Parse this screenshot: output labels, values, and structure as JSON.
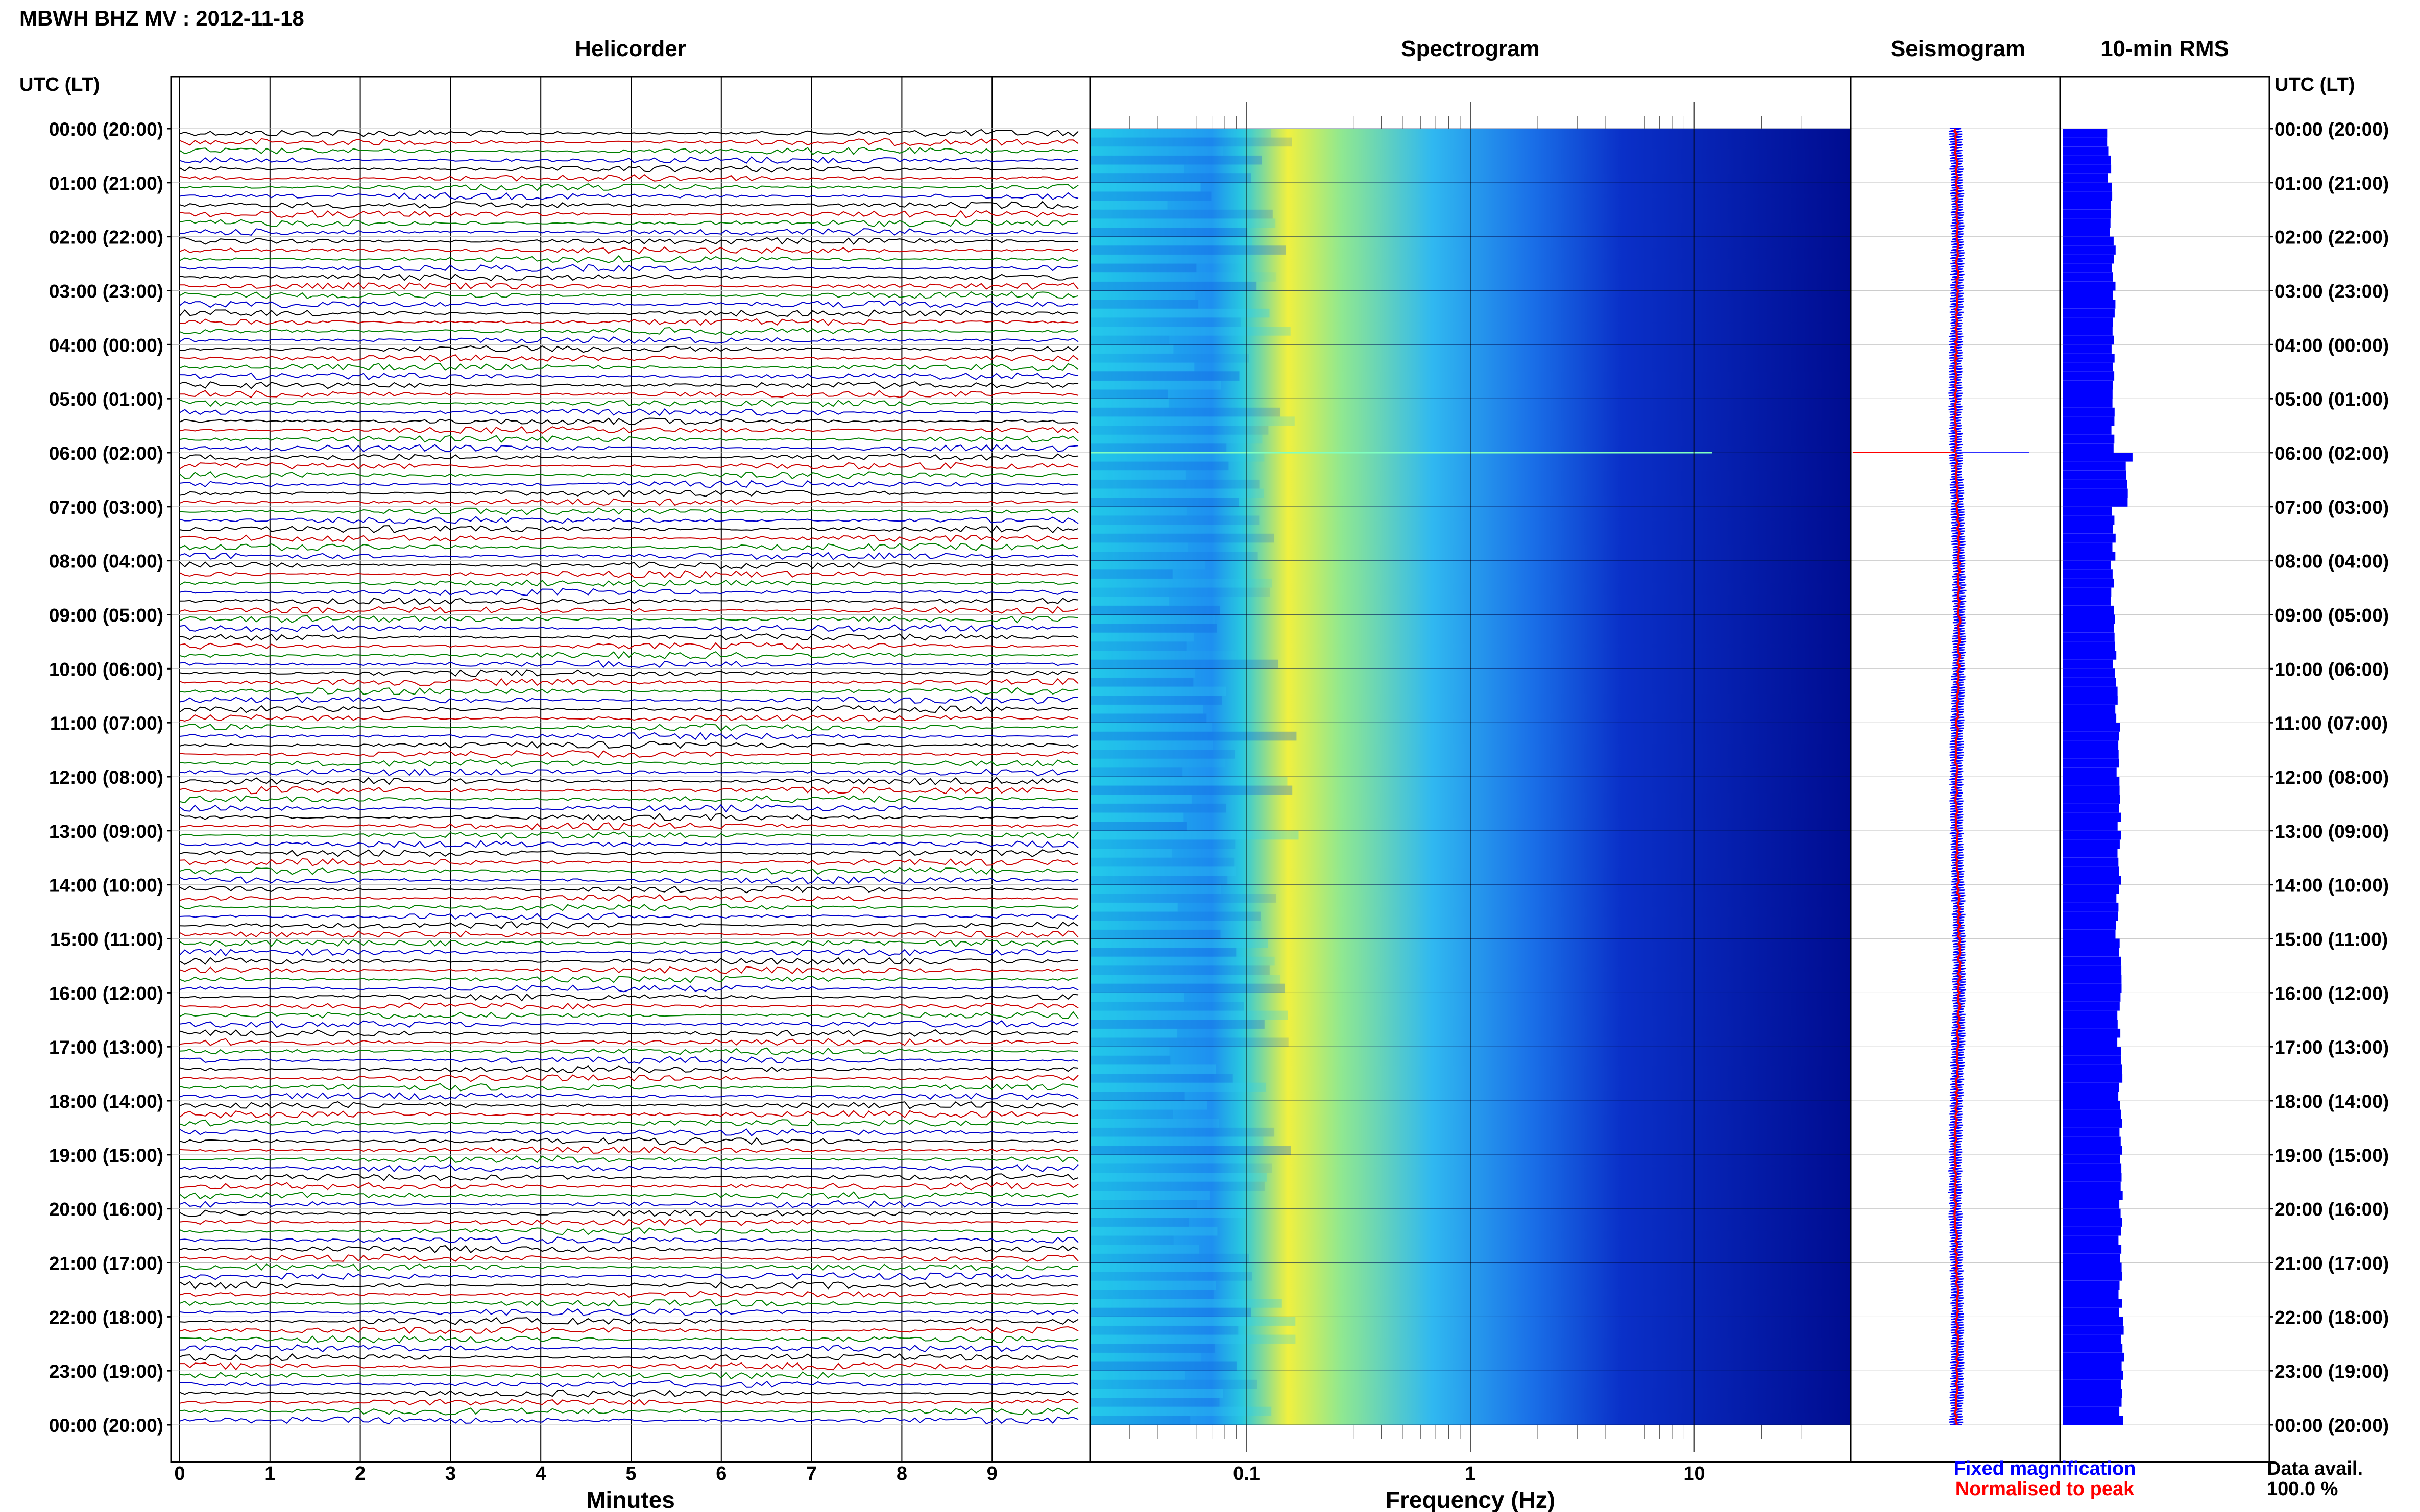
{
  "title": "MBWH BHZ MV : 2012-11-18",
  "panel_titles": {
    "helicorder": "Helicorder",
    "spectrogram": "Spectrogram",
    "seismogram": "Seismogram",
    "rms": "10-min RMS"
  },
  "axis_labels": {
    "left_time": "UTC (LT)",
    "right_time": "UTC (LT)",
    "helicorder_x": "Minutes",
    "spectrogram_x": "Frequency (Hz)"
  },
  "legend": {
    "fixed": "Fixed magnification",
    "normalised": "Normalised to peak",
    "fixed_color": "#0000ff",
    "normalised_color": "#ff0000"
  },
  "data_avail": {
    "label": "Data avail.",
    "value": "100.0 %"
  },
  "colors": {
    "helicorder_traces": [
      "#000000",
      "#cc0000",
      "#008000",
      "#0000cc"
    ],
    "rms_bar": "#0000ff",
    "seismogram_envelope": "#0000ff",
    "seismogram_trace": "#ff0000"
  },
  "chart_data": [
    {
      "type": "line",
      "panel": "helicorder",
      "xlabel": "Minutes",
      "x_ticks": [
        "0",
        "1",
        "2",
        "3",
        "4",
        "5",
        "6",
        "7",
        "8",
        "9"
      ],
      "xlim": [
        0,
        10
      ],
      "rows_per_hour": 6,
      "row_minutes": 10,
      "time_ticks": [
        "00:00 (20:00)",
        "01:00 (21:00)",
        "02:00 (22:00)",
        "03:00 (23:00)",
        "04:00 (00:00)",
        "05:00 (01:00)",
        "06:00 (02:00)",
        "07:00 (03:00)",
        "08:00 (04:00)",
        "09:00 (05:00)",
        "10:00 (06:00)",
        "11:00 (07:00)",
        "12:00 (08:00)",
        "13:00 (09:00)",
        "14:00 (10:00)",
        "15:00 (11:00)",
        "16:00 (12:00)",
        "17:00 (13:00)",
        "18:00 (14:00)",
        "19:00 (15:00)",
        "20:00 (16:00)",
        "21:00 (17:00)",
        "22:00 (18:00)",
        "23:00 (19:00)",
        "00:00 (20:00)"
      ]
    },
    {
      "type": "heatmap",
      "panel": "spectrogram",
      "xlabel": "Frequency (Hz)",
      "x_scale": "log",
      "xlim": [
        0.02,
        50
      ],
      "x_ticks": [
        "0.1",
        "1",
        "10"
      ],
      "peak_frequency_hz": 0.25,
      "notable_event_hour": 6.0
    },
    {
      "type": "line",
      "panel": "seismogram",
      "series": [
        {
          "name": "Fixed magnification"
        },
        {
          "name": "Normalised to peak"
        }
      ],
      "event_hour": 6.0
    },
    {
      "type": "bar",
      "panel": "rms",
      "interval_minutes": 10,
      "hours": [
        0,
        1,
        2,
        3,
        4,
        5,
        6,
        7,
        8,
        9,
        10,
        11,
        12,
        13,
        14,
        15,
        16,
        17,
        18,
        19,
        20,
        21,
        22,
        23
      ],
      "values": [
        0.42,
        0.44,
        0.46,
        0.47,
        0.46,
        0.45,
        0.58,
        0.46,
        0.45,
        0.47,
        0.49,
        0.5,
        0.51,
        0.51,
        0.49,
        0.52,
        0.51,
        0.52,
        0.53,
        0.53,
        0.52,
        0.52,
        0.54,
        0.53
      ],
      "ylim": [
        0,
        1
      ]
    }
  ]
}
